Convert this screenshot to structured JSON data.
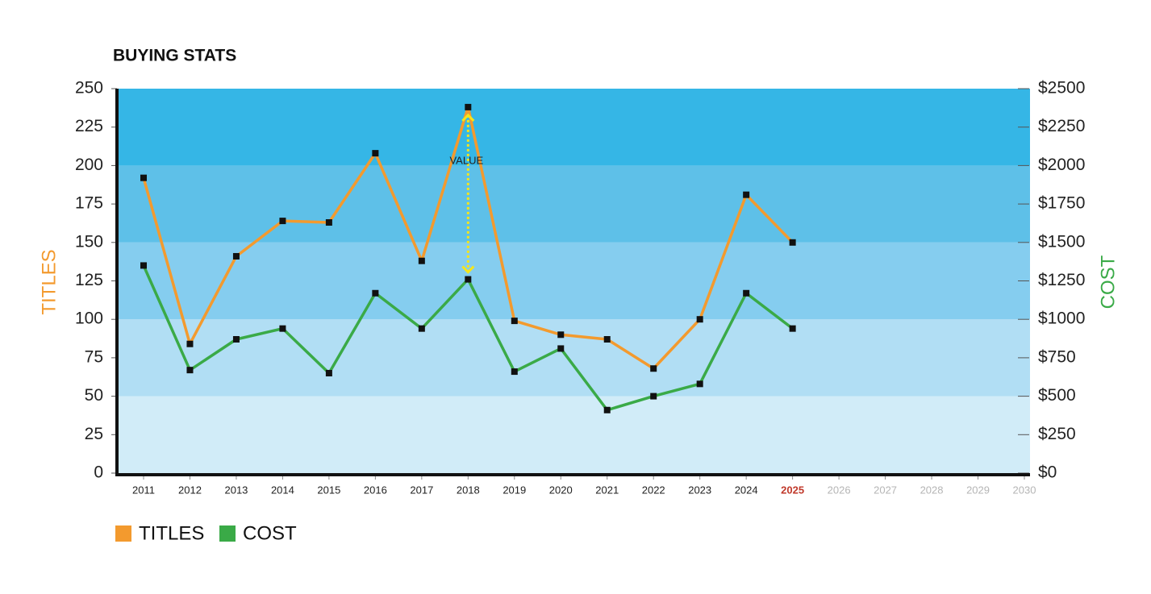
{
  "chart_data": {
    "type": "line",
    "title": "BUYING STATS",
    "ylabel": "TITLES",
    "y2label": "COST",
    "categories": [
      "2011",
      "2012",
      "2013",
      "2014",
      "2015",
      "2016",
      "2017",
      "2018",
      "2019",
      "2020",
      "2021",
      "2022",
      "2023",
      "2024",
      "2025",
      "2026",
      "2027",
      "2028",
      "2029",
      "2030"
    ],
    "category_colors": [
      "#222",
      "#222",
      "#222",
      "#222",
      "#222",
      "#222",
      "#222",
      "#222",
      "#222",
      "#222",
      "#222",
      "#222",
      "#222",
      "#222",
      "#c0392b",
      "#b5b5b5",
      "#b5b5b5",
      "#b5b5b5",
      "#b5b5b5",
      "#b5b5b5"
    ],
    "series": [
      {
        "name": "TITLES",
        "color": "#f39a2e",
        "values": [
          192,
          84,
          141,
          164,
          163,
          208,
          138,
          238,
          99,
          90,
          87,
          68,
          100,
          181,
          150,
          null,
          null,
          null,
          null,
          null
        ]
      },
      {
        "name": "COST",
        "color": "#3aaa47",
        "axis": "y2",
        "values": [
          1350,
          670,
          870,
          940,
          650,
          1170,
          940,
          1260,
          660,
          810,
          410,
          500,
          580,
          1170,
          940,
          null,
          null,
          null,
          null,
          null
        ]
      }
    ],
    "ylim": [
      0,
      250
    ],
    "yticks": [
      0,
      25,
      50,
      75,
      100,
      125,
      150,
      175,
      200,
      225,
      250
    ],
    "y2lim": [
      0,
      2500
    ],
    "y2ticks": [
      {
        "value": 0,
        "label": "$0"
      },
      {
        "value": 250,
        "label": "$250"
      },
      {
        "value": 500,
        "label": "$500"
      },
      {
        "value": 750,
        "label": "$750"
      },
      {
        "value": 1000,
        "label": "$1000"
      },
      {
        "value": 1250,
        "label": "$1250"
      },
      {
        "value": 1500,
        "label": "$1500"
      },
      {
        "value": 1750,
        "label": "$1750"
      },
      {
        "value": 2000,
        "label": "$2000"
      },
      {
        "value": 2250,
        "label": "$2250"
      },
      {
        "value": 2500,
        "label": "$2500"
      }
    ],
    "bands": [
      "#d1ecf8",
      "#b1def4",
      "#85cdef",
      "#5ec0e8",
      "#35b6e6"
    ],
    "annotation": {
      "text": "VALUE",
      "category": "2018"
    },
    "legend": "bottom-left"
  }
}
